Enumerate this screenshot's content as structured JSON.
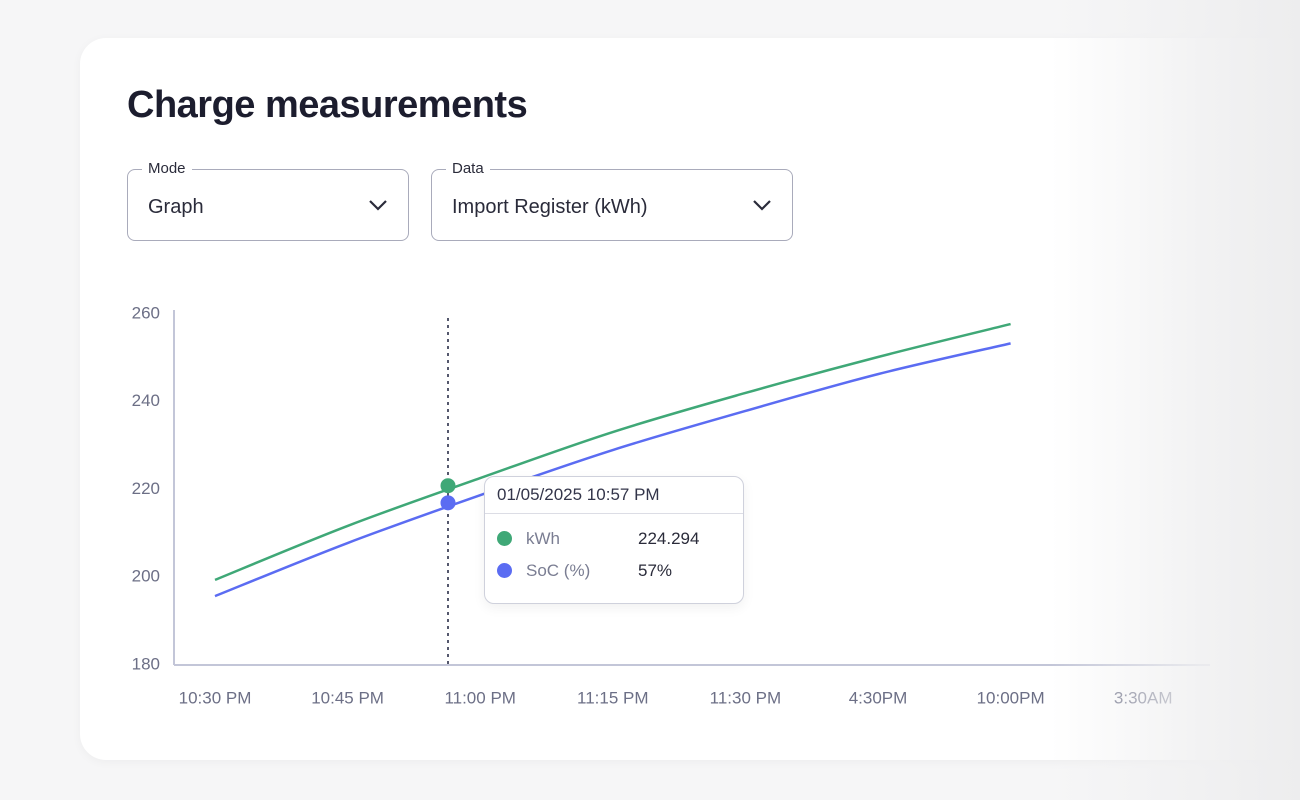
{
  "header": {
    "title": "Charge measurements"
  },
  "controls": [
    {
      "label": "Mode",
      "value": "Graph"
    },
    {
      "label": "Data",
      "value": "Import Register (kWh)"
    }
  ],
  "chart_data": {
    "type": "line",
    "categories": [
      "10:30 PM",
      "10:45 PM",
      "11:00 PM",
      "11:15 PM",
      "11:30 PM",
      "4:30PM",
      "10:00PM",
      "3:30AM"
    ],
    "series": [
      {
        "name": "kWh",
        "color": "#3fa877",
        "values": [
          199.4,
          211.7,
          222.6,
          233.1,
          242,
          250.2,
          257.7,
          null
        ]
      },
      {
        "name": "SoC (%)",
        "color": "#5b6cf2",
        "values": [
          195.7,
          207.8,
          218.7,
          229,
          237.9,
          246.3,
          253.3,
          null
        ]
      }
    ],
    "ylim": [
      180,
      260
    ],
    "yticks": [
      180,
      200,
      220,
      240,
      260
    ],
    "tooltip": {
      "title": "01/05/2025 10:57 PM",
      "values": [
        224.294,
        57
      ],
      "value_labels": [
        "224.294",
        "57%"
      ]
    }
  }
}
